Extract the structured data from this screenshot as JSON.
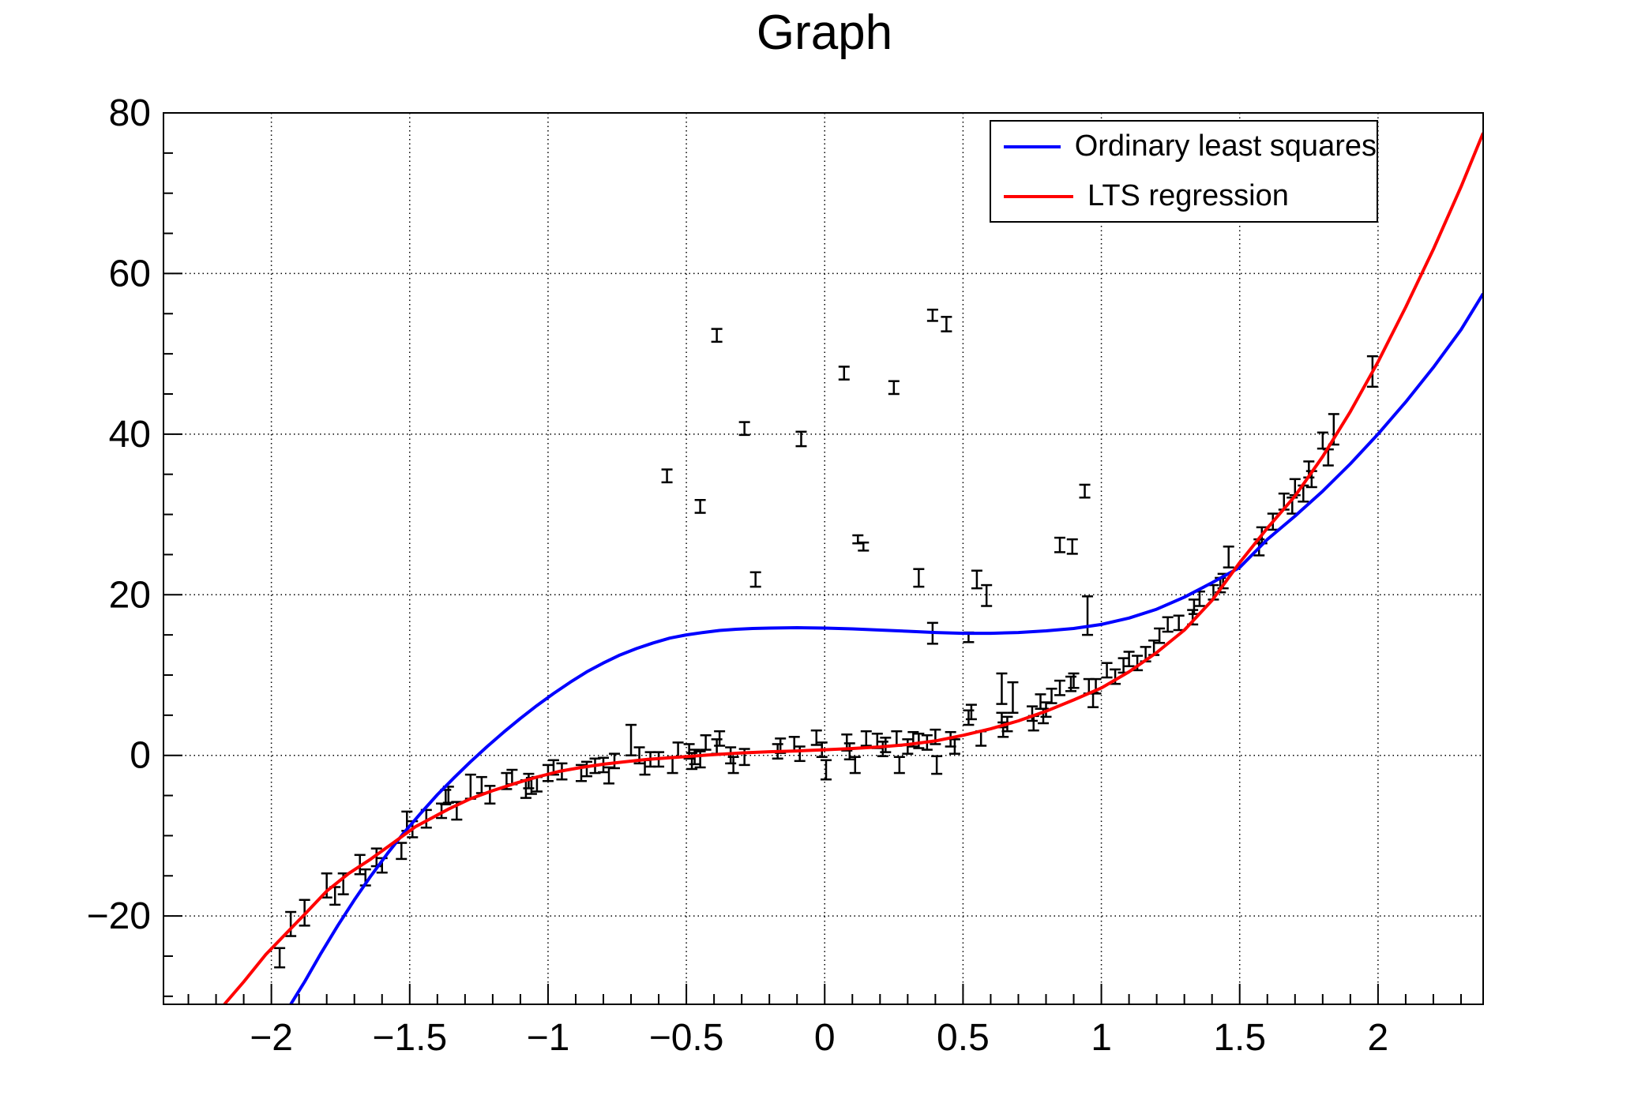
{
  "title": "Graph",
  "legend": {
    "items": [
      {
        "label": "Ordinary least squares",
        "color": "#0000ff"
      },
      {
        "label": "LTS regression",
        "color": "#ff0000"
      }
    ]
  },
  "colors": {
    "data": "#000000",
    "ols": "#0000ff",
    "lts": "#ff0000",
    "grid": "#000000",
    "frame": "#000000"
  },
  "chart_data": {
    "type": "scatter",
    "title": "Graph",
    "xlabel": "",
    "ylabel": "",
    "xlim": [
      -2.39,
      2.38
    ],
    "ylim": [
      -31,
      80
    ],
    "grid": true,
    "legend_position": "top-right",
    "x_axis": {
      "major_ticks": [
        -2,
        -1.5,
        -1,
        -0.5,
        0,
        0.5,
        1,
        1.5,
        2
      ],
      "major_labels": [
        "−2",
        "−1.5",
        "−1",
        "−0.5",
        "0",
        "0.5",
        "1",
        "1.5",
        "2"
      ],
      "minor_step": 0.1
    },
    "y_axis": {
      "major_ticks": [
        -20,
        0,
        20,
        40,
        60,
        80
      ],
      "major_labels": [
        "−20",
        "0",
        "20",
        "40",
        "60",
        "80"
      ],
      "minor_step": 5
    },
    "series": [
      {
        "name": "data-points",
        "type": "scatter-errorbars",
        "color": "#000000",
        "points": [
          [
            -1.97,
            -25.2,
            1.2
          ],
          [
            -1.93,
            -21.0,
            1.5
          ],
          [
            -1.88,
            -19.6,
            1.6
          ],
          [
            -1.8,
            -16.2,
            1.5
          ],
          [
            -1.77,
            -17.5,
            1.1
          ],
          [
            -1.74,
            -16.0,
            1.3
          ],
          [
            -1.68,
            -13.6,
            1.2
          ],
          [
            -1.66,
            -15.2,
            1.0
          ],
          [
            -1.62,
            -12.7,
            1.1
          ],
          [
            -1.6,
            -13.7,
            0.9
          ],
          [
            -1.53,
            -11.9,
            1.0
          ],
          [
            -1.51,
            -8.2,
            1.2
          ],
          [
            -1.49,
            -9.2,
            1.0
          ],
          [
            -1.44,
            -7.9,
            1.1
          ],
          [
            -1.385,
            -6.9,
            0.9
          ],
          [
            -1.37,
            -5.2,
            0.9
          ],
          [
            -1.36,
            -4.9,
            1.0
          ],
          [
            -1.33,
            -6.9,
            1.1
          ],
          [
            -1.28,
            -3.9,
            1.5
          ],
          [
            -1.24,
            -3.7,
            1.0
          ],
          [
            -1.21,
            -4.9,
            1.1
          ],
          [
            -1.15,
            -3.2,
            1.0
          ],
          [
            -1.13,
            -2.7,
            0.9
          ],
          [
            -1.08,
            -4.2,
            1.1
          ],
          [
            -1.07,
            -3.2,
            0.9
          ],
          [
            -1.06,
            -3.8,
            1.0
          ],
          [
            -1.04,
            -3.6,
            0.9
          ],
          [
            -1.0,
            -2.2,
            1.0
          ],
          [
            -0.98,
            -1.5,
            0.9
          ],
          [
            -0.95,
            -2.0,
            1.0
          ],
          [
            -0.88,
            -2.2,
            1.0
          ],
          [
            -0.86,
            -1.7,
            0.9
          ],
          [
            -0.83,
            -1.3,
            0.9
          ],
          [
            -0.8,
            -1.2,
            0.9
          ],
          [
            -0.78,
            -2.5,
            1.0
          ],
          [
            -0.76,
            -0.7,
            0.9
          ],
          [
            -0.7,
            1.9,
            1.9
          ],
          [
            -0.67,
            0.0,
            1.0
          ],
          [
            -0.65,
            -1.5,
            0.9
          ],
          [
            -0.63,
            -0.5,
            0.9
          ],
          [
            -0.6,
            -0.5,
            0.9
          ],
          [
            -0.57,
            34.8,
            0.8
          ],
          [
            -0.55,
            -1.2,
            1.0
          ],
          [
            -0.53,
            0.7,
            0.9
          ],
          [
            -0.49,
            0.5,
            0.9
          ],
          [
            -0.48,
            -0.7,
            1.0
          ],
          [
            -0.47,
            -0.2,
            0.9
          ],
          [
            -0.45,
            31.0,
            0.8
          ],
          [
            -0.45,
            -0.5,
            1.0
          ],
          [
            -0.43,
            1.6,
            0.9
          ],
          [
            -0.39,
            52.3,
            0.8
          ],
          [
            -0.39,
            1.1,
            0.9
          ],
          [
            -0.38,
            2.1,
            0.9
          ],
          [
            -0.34,
            0.0,
            1.0
          ],
          [
            -0.33,
            -1.2,
            1.0
          ],
          [
            -0.29,
            40.7,
            0.8
          ],
          [
            -0.29,
            -0.2,
            1.0
          ],
          [
            -0.25,
            21.9,
            0.9
          ],
          [
            -0.17,
            0.5,
            0.9
          ],
          [
            -0.16,
            1.2,
            0.9
          ],
          [
            -0.11,
            1.4,
            0.9
          ],
          [
            -0.09,
            0.2,
            0.9
          ],
          [
            -0.085,
            39.4,
            0.9
          ],
          [
            -0.03,
            2.2,
            0.9
          ],
          [
            -0.01,
            0.7,
            0.9
          ],
          [
            0.005,
            -1.8,
            1.2
          ],
          [
            0.07,
            47.6,
            0.8
          ],
          [
            0.08,
            1.6,
            1.0
          ],
          [
            0.09,
            0.5,
            1.0
          ],
          [
            0.11,
            -1.2,
            1.0
          ],
          [
            0.12,
            26.9,
            0.5
          ],
          [
            0.14,
            26.0,
            0.5
          ],
          [
            0.15,
            2.1,
            0.9
          ],
          [
            0.19,
            1.8,
            0.9
          ],
          [
            0.21,
            0.8,
            0.9
          ],
          [
            0.22,
            1.3,
            0.9
          ],
          [
            0.25,
            45.8,
            0.8
          ],
          [
            0.26,
            2.1,
            0.9
          ],
          [
            0.27,
            -1.2,
            1.0
          ],
          [
            0.3,
            1.1,
            0.9
          ],
          [
            0.32,
            2.0,
            0.9
          ],
          [
            0.34,
            22.1,
            1.1
          ],
          [
            0.34,
            1.8,
            0.9
          ],
          [
            0.37,
            1.6,
            0.9
          ],
          [
            0.39,
            54.8,
            0.7
          ],
          [
            0.39,
            15.2,
            1.3
          ],
          [
            0.4,
            2.3,
            0.9
          ],
          [
            0.405,
            -1.2,
            1.1
          ],
          [
            0.44,
            53.7,
            0.9
          ],
          [
            0.455,
            2.0,
            0.9
          ],
          [
            0.47,
            1.1,
            0.9
          ],
          [
            0.52,
            14.7,
            0.6
          ],
          [
            0.52,
            4.7,
            0.9
          ],
          [
            0.53,
            5.4,
            0.9
          ],
          [
            0.55,
            21.9,
            1.1
          ],
          [
            0.565,
            2.1,
            0.9
          ],
          [
            0.585,
            19.9,
            1.3
          ],
          [
            0.64,
            8.3,
            1.9
          ],
          [
            0.64,
            4.4,
            0.9
          ],
          [
            0.645,
            3.2,
            0.9
          ],
          [
            0.66,
            3.9,
            0.9
          ],
          [
            0.68,
            7.2,
            1.9
          ],
          [
            0.75,
            5.2,
            0.9
          ],
          [
            0.755,
            4.0,
            0.9
          ],
          [
            0.78,
            6.7,
            0.9
          ],
          [
            0.79,
            4.9,
            0.9
          ],
          [
            0.8,
            5.7,
            0.9
          ],
          [
            0.82,
            7.4,
            0.9
          ],
          [
            0.85,
            26.2,
            0.9
          ],
          [
            0.85,
            8.4,
            0.9
          ],
          [
            0.89,
            8.9,
            0.9
          ],
          [
            0.895,
            26.0,
            0.9
          ],
          [
            0.9,
            9.3,
            0.9
          ],
          [
            0.94,
            32.9,
            0.8
          ],
          [
            0.95,
            17.4,
            2.4
          ],
          [
            0.955,
            8.6,
            0.9
          ],
          [
            0.97,
            6.9,
            0.9
          ],
          [
            0.98,
            8.6,
            0.9
          ],
          [
            1.02,
            10.6,
            0.9
          ],
          [
            1.05,
            9.8,
            0.9
          ],
          [
            1.08,
            11.2,
            0.9
          ],
          [
            1.1,
            12.0,
            0.9
          ],
          [
            1.13,
            11.5,
            0.9
          ],
          [
            1.16,
            12.6,
            0.9
          ],
          [
            1.19,
            13.4,
            0.9
          ],
          [
            1.21,
            14.9,
            0.9
          ],
          [
            1.24,
            16.3,
            0.9
          ],
          [
            1.28,
            16.5,
            0.9
          ],
          [
            1.33,
            17.2,
            0.9
          ],
          [
            1.335,
            18.5,
            0.9
          ],
          [
            1.355,
            19.5,
            0.9
          ],
          [
            1.405,
            20.3,
            0.9
          ],
          [
            1.43,
            21.2,
            0.9
          ],
          [
            1.44,
            21.7,
            0.9
          ],
          [
            1.46,
            24.7,
            1.3
          ],
          [
            1.57,
            25.9,
            1.0
          ],
          [
            1.58,
            27.4,
            1.0
          ],
          [
            1.62,
            29.1,
            1.0
          ],
          [
            1.66,
            31.6,
            1.0
          ],
          [
            1.69,
            31.1,
            1.0
          ],
          [
            1.7,
            33.4,
            1.0
          ],
          [
            1.73,
            32.6,
            1.0
          ],
          [
            1.75,
            35.6,
            1.0
          ],
          [
            1.76,
            34.4,
            1.0
          ],
          [
            1.8,
            39.2,
            1.0
          ],
          [
            1.82,
            37.1,
            1.0
          ],
          [
            1.84,
            40.6,
            1.9
          ],
          [
            1.98,
            47.8,
            1.9
          ]
        ]
      },
      {
        "name": "Ordinary least squares",
        "type": "line",
        "color": "#0000ff",
        "points": [
          [
            -1.93,
            -31
          ],
          [
            -1.88,
            -28.2
          ],
          [
            -1.82,
            -24.6
          ],
          [
            -1.76,
            -21.2
          ],
          [
            -1.7,
            -18.0
          ],
          [
            -1.64,
            -15.0
          ],
          [
            -1.58,
            -12.2
          ],
          [
            -1.52,
            -9.6
          ],
          [
            -1.46,
            -7.2
          ],
          [
            -1.4,
            -4.9
          ],
          [
            -1.34,
            -2.8
          ],
          [
            -1.28,
            -0.8
          ],
          [
            -1.22,
            1.1
          ],
          [
            -1.16,
            2.9
          ],
          [
            -1.1,
            4.6
          ],
          [
            -1.04,
            6.2
          ],
          [
            -0.98,
            7.7
          ],
          [
            -0.92,
            9.1
          ],
          [
            -0.86,
            10.4
          ],
          [
            -0.8,
            11.5
          ],
          [
            -0.74,
            12.5
          ],
          [
            -0.68,
            13.3
          ],
          [
            -0.62,
            14.0
          ],
          [
            -0.56,
            14.6
          ],
          [
            -0.5,
            15.0
          ],
          [
            -0.44,
            15.3
          ],
          [
            -0.38,
            15.55
          ],
          [
            -0.32,
            15.7
          ],
          [
            -0.26,
            15.8
          ],
          [
            -0.2,
            15.85
          ],
          [
            -0.1,
            15.9
          ],
          [
            0.0,
            15.85
          ],
          [
            0.1,
            15.75
          ],
          [
            0.2,
            15.6
          ],
          [
            0.3,
            15.45
          ],
          [
            0.4,
            15.3
          ],
          [
            0.5,
            15.2
          ],
          [
            0.6,
            15.2
          ],
          [
            0.7,
            15.3
          ],
          [
            0.8,
            15.5
          ],
          [
            0.9,
            15.8
          ],
          [
            1.0,
            16.3
          ],
          [
            1.1,
            17.1
          ],
          [
            1.2,
            18.2
          ],
          [
            1.3,
            19.7
          ],
          [
            1.4,
            21.5
          ],
          [
            1.5,
            23.4
          ],
          [
            1.6,
            26.9
          ],
          [
            1.7,
            29.8
          ],
          [
            1.8,
            32.9
          ],
          [
            1.9,
            36.3
          ],
          [
            2.0,
            40.0
          ],
          [
            2.1,
            44.0
          ],
          [
            2.2,
            48.3
          ],
          [
            2.3,
            53.0
          ],
          [
            2.38,
            57.5
          ]
        ]
      },
      {
        "name": "LTS regression",
        "type": "line",
        "color": "#ff0000",
        "points": [
          [
            -2.17,
            -31
          ],
          [
            -2.1,
            -28.2
          ],
          [
            -2.02,
            -24.8
          ],
          [
            -1.95,
            -22.3
          ],
          [
            -1.88,
            -19.8
          ],
          [
            -1.8,
            -16.9
          ],
          [
            -1.72,
            -14.7
          ],
          [
            -1.64,
            -12.9
          ],
          [
            -1.56,
            -10.9
          ],
          [
            -1.48,
            -8.9
          ],
          [
            -1.42,
            -7.8
          ],
          [
            -1.36,
            -6.7
          ],
          [
            -1.28,
            -5.4
          ],
          [
            -1.2,
            -4.4
          ],
          [
            -1.12,
            -3.5
          ],
          [
            -1.04,
            -2.7
          ],
          [
            -0.96,
            -2.0
          ],
          [
            -0.88,
            -1.5
          ],
          [
            -0.8,
            -1.1
          ],
          [
            -0.72,
            -0.8
          ],
          [
            -0.64,
            -0.5
          ],
          [
            -0.56,
            -0.3
          ],
          [
            -0.48,
            -0.1
          ],
          [
            -0.4,
            0.1
          ],
          [
            -0.3,
            0.3
          ],
          [
            -0.2,
            0.45
          ],
          [
            -0.1,
            0.55
          ],
          [
            0.0,
            0.7
          ],
          [
            0.1,
            0.85
          ],
          [
            0.2,
            1.05
          ],
          [
            0.3,
            1.35
          ],
          [
            0.4,
            1.8
          ],
          [
            0.5,
            2.5
          ],
          [
            0.6,
            3.3
          ],
          [
            0.7,
            4.3
          ],
          [
            0.8,
            5.5
          ],
          [
            0.9,
            6.9
          ],
          [
            1.0,
            8.4
          ],
          [
            1.1,
            10.4
          ],
          [
            1.2,
            12.8
          ],
          [
            1.3,
            15.6
          ],
          [
            1.4,
            19.3
          ],
          [
            1.5,
            24.0
          ],
          [
            1.6,
            28.3
          ],
          [
            1.7,
            32.3
          ],
          [
            1.8,
            37.2
          ],
          [
            1.9,
            42.8
          ],
          [
            2.0,
            49.0
          ],
          [
            2.1,
            55.8
          ],
          [
            2.2,
            63.0
          ],
          [
            2.3,
            70.8
          ],
          [
            2.38,
            77.5
          ]
        ]
      }
    ]
  }
}
